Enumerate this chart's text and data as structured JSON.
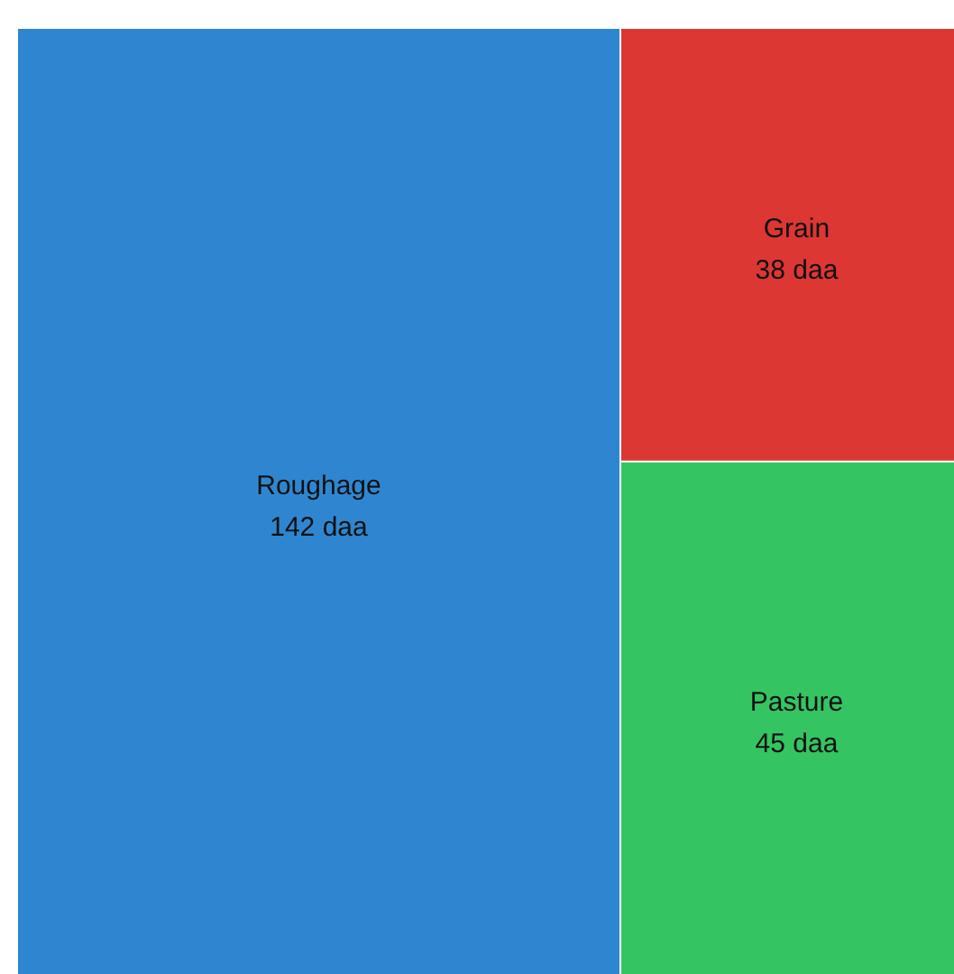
{
  "chart_data": {
    "type": "other",
    "categories": [
      "Roughage",
      "Grain",
      "Pasture"
    ],
    "values": [
      142,
      38,
      45
    ],
    "value_labels": [
      "142 daa",
      "38 daa",
      "45 daa"
    ],
    "colors": [
      "#2f86d0",
      "#dc3733",
      "#35c462"
    ]
  }
}
